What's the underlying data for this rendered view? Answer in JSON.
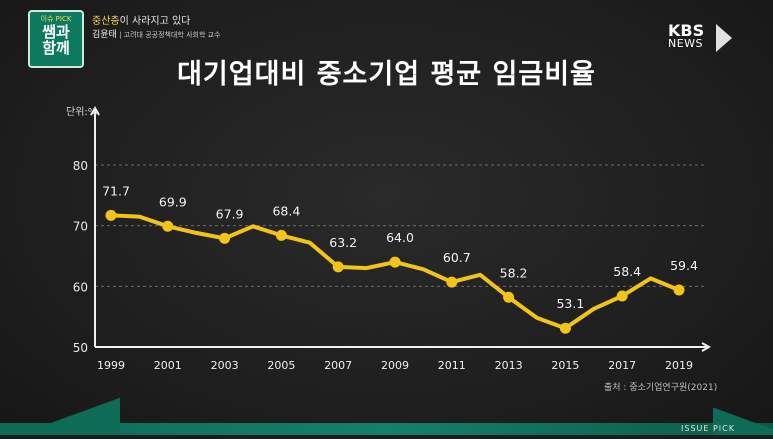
{
  "program": {
    "logo_top": "이슈 PICK",
    "logo_main_1": "쌤과",
    "logo_main_2": "함께"
  },
  "caption": {
    "headline_highlight": "중산층",
    "headline_rest": "이 사라지고 있다",
    "speaker_name": "김윤태",
    "speaker_title": "고려대 공공정책대학 사회학 교수"
  },
  "broadcaster": {
    "name": "KBS",
    "sub": "NEWS"
  },
  "footer": {
    "label": "ISSUE PICK"
  },
  "colors": {
    "line": "#f2c318",
    "background": "#1d1d1d",
    "accent_green": "#0e6b55",
    "highlight_text": "#ffd84a"
  },
  "source": "출처 : 중소기업연구원(2021)",
  "chart_data": {
    "type": "line",
    "title": "대기업대비 중소기업 평균 임금비율",
    "unit_label": "단위:%",
    "ylim": [
      50,
      80
    ],
    "yticks": [
      50,
      60,
      70,
      80
    ],
    "grid": "horizontal-dashed",
    "xticks": [
      "1999",
      "2001",
      "2003",
      "2005",
      "2007",
      "2009",
      "2011",
      "2013",
      "2015",
      "2017",
      "2019"
    ],
    "x": [
      1999,
      2000,
      2001,
      2002,
      2003,
      2004,
      2005,
      2006,
      2007,
      2008,
      2009,
      2010,
      2011,
      2012,
      2013,
      2014,
      2015,
      2016,
      2017,
      2018,
      2019
    ],
    "values": [
      71.7,
      71.5,
      69.9,
      68.8,
      67.9,
      69.9,
      68.4,
      67.2,
      63.2,
      63.0,
      64.0,
      62.8,
      60.7,
      61.9,
      58.2,
      54.8,
      53.1,
      56.3,
      58.4,
      61.3,
      59.4
    ],
    "labels": [
      {
        "x": 1999,
        "text": "71.7"
      },
      {
        "x": 2001,
        "text": "69.9"
      },
      {
        "x": 2003,
        "text": "67.9"
      },
      {
        "x": 2005,
        "text": "68.4"
      },
      {
        "x": 2007,
        "text": "63.2"
      },
      {
        "x": 2009,
        "text": "64.0"
      },
      {
        "x": 2011,
        "text": "60.7"
      },
      {
        "x": 2013,
        "text": "58.2"
      },
      {
        "x": 2015,
        "text": "53.1"
      },
      {
        "x": 2017,
        "text": "58.4"
      },
      {
        "x": 2019,
        "text": "59.4"
      }
    ]
  }
}
